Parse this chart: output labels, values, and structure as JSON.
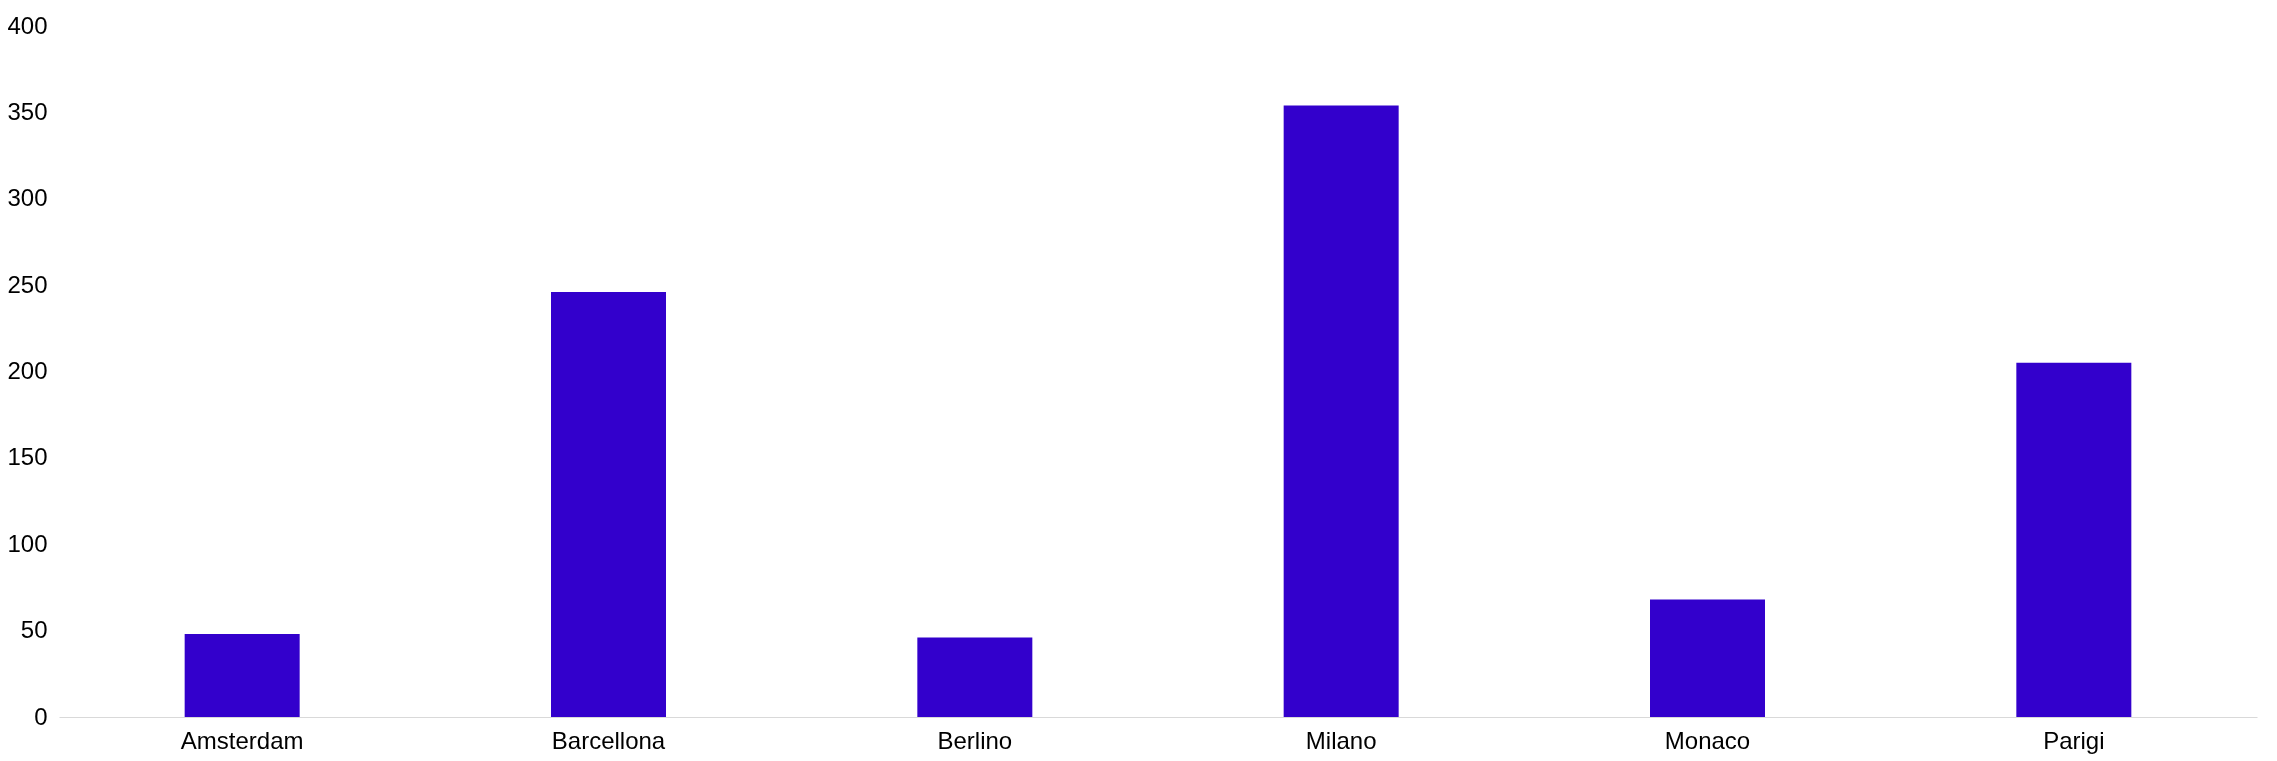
{
  "chart_data": {
    "type": "bar",
    "categories": [
      "Amsterdam",
      "Barcellona",
      "Berlino",
      "Milano",
      "Monaco",
      "Parigi"
    ],
    "values": [
      48,
      246,
      46,
      354,
      68,
      205
    ],
    "color": "#3300cc",
    "ylim": [
      0,
      400
    ],
    "yticks": [
      0,
      50,
      100,
      150,
      200,
      250,
      300,
      350,
      400
    ],
    "grid": false
  }
}
